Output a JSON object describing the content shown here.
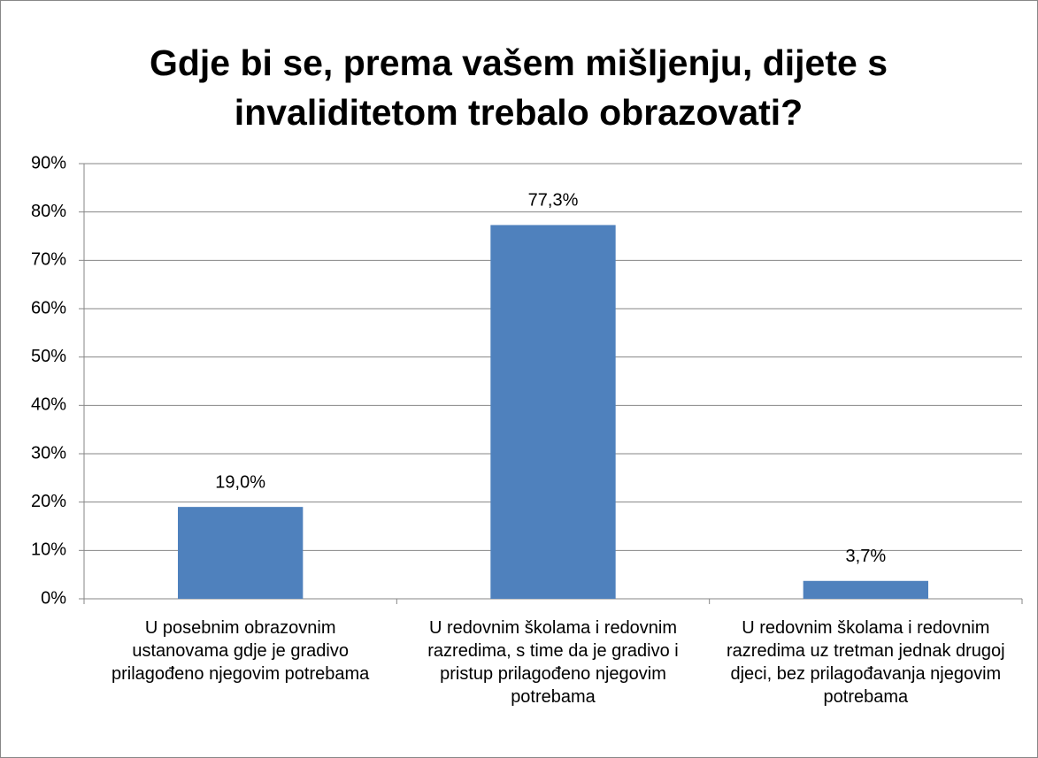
{
  "chart_data": {
    "type": "bar",
    "title": "Gdje bi se, prema vašem mišljenju, dijete s invaliditetom trebalo obrazovati?",
    "categories": [
      "U posebnim obrazovnim ustanovama gdje je gradivo prilagođeno njegovim potrebama",
      "U redovnim školama i redovnim razredima, s time da je gradivo i pristup prilagođeno njegovim potrebama",
      "U redovnim školama i redovnim razredima uz tretman jednak drugoj djeci, bez prilagođavanja njegovim potrebama"
    ],
    "values": [
      19.0,
      77.3,
      3.7
    ],
    "value_labels": [
      "19,0%",
      "77,3%",
      "3,7%"
    ],
    "color": "#4f81bd",
    "ylim": [
      0,
      90
    ],
    "yticks": [
      {
        "value": 0,
        "label": "0%"
      },
      {
        "value": 10,
        "label": "10%"
      },
      {
        "value": 20,
        "label": "20%"
      },
      {
        "value": 30,
        "label": "30%"
      },
      {
        "value": 40,
        "label": "40%"
      },
      {
        "value": 50,
        "label": "50%"
      },
      {
        "value": 60,
        "label": "60%"
      },
      {
        "value": 70,
        "label": "70%"
      },
      {
        "value": 80,
        "label": "80%"
      },
      {
        "value": 90,
        "label": "90%"
      }
    ],
    "grid": true
  }
}
